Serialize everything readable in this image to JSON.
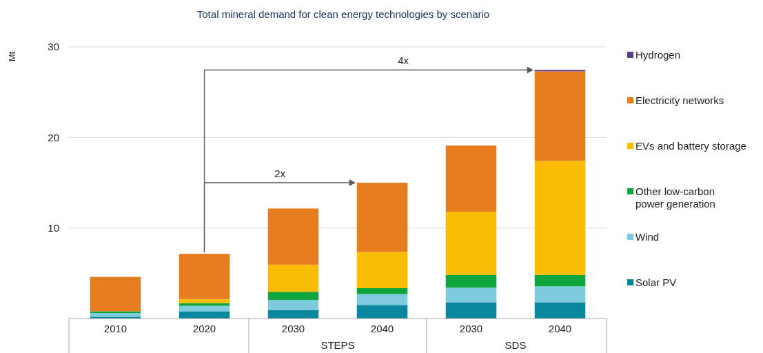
{
  "chart_data": {
    "type": "bar",
    "title": "Total mineral demand for clean energy technologies by scenario",
    "ylabel": "Mt",
    "categories": [
      "2010",
      "2020",
      "2030",
      "2040",
      "2030",
      "2040"
    ],
    "stacked": true,
    "ylim": [
      0,
      30
    ],
    "yticks": [
      10,
      20,
      30
    ],
    "grid": "y",
    "legend": "right",
    "annotations": [
      "4x",
      "2x",
      "STEPS",
      "SDS"
    ],
    "series": [
      {
        "name": "Solar PV",
        "color": "#0a879d",
        "values": [
          0.2,
          0.8,
          0.95,
          1.5,
          1.8,
          1.8
        ]
      },
      {
        "name": "Wind",
        "color": "#7ecbdf",
        "values": [
          0.4,
          0.6,
          1.1,
          1.2,
          1.6,
          1.75
        ]
      },
      {
        "name": "Other low-carbon power generation",
        "color": "#0ea43e",
        "values": [
          0.2,
          0.3,
          0.9,
          0.65,
          1.4,
          1.25
        ]
      },
      {
        "name": "EVs and battery storage",
        "color": "#fbbc04",
        "values": [
          null,
          0.45,
          3.0,
          4.0,
          7.0,
          12.6
        ]
      },
      {
        "name": "Electricity networks",
        "color": "#e57c1e",
        "values": [
          3.8,
          5.0,
          6.2,
          7.65,
          7.3,
          9.9
        ]
      },
      {
        "name": "Hydrogen",
        "color": "#5b3f86",
        "values": [
          0,
          0,
          0,
          0,
          0,
          0.15
        ]
      }
    ]
  }
}
